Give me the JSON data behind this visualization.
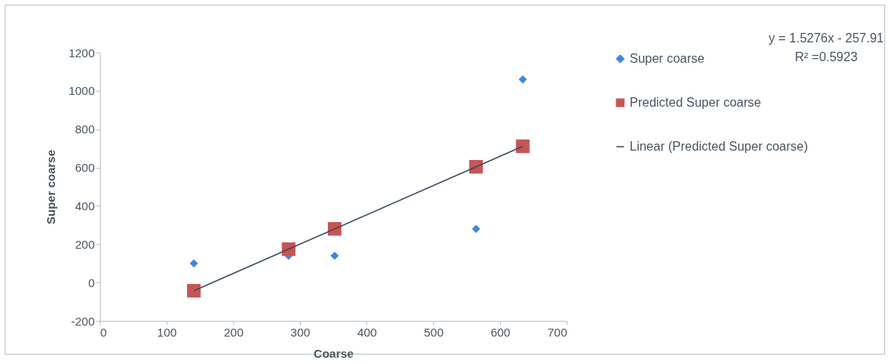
{
  "chart_data": {
    "type": "scatter",
    "xlabel": "Coarse",
    "ylabel": "Super coarse",
    "annotations": [
      "y = 1.5276x - 257.91",
      "R² =0.5923"
    ],
    "xlim": [
      0,
      700
    ],
    "xticks": [
      0,
      100,
      200,
      300,
      400,
      500,
      600,
      700
    ],
    "ylim": [
      -200,
      1200
    ],
    "yticks": [
      -200,
      0,
      200,
      400,
      600,
      800,
      1000,
      1200
    ],
    "grid": false,
    "legend": "right",
    "series": [
      {
        "name": "Super coarse",
        "type": "scatter",
        "marker": "diamond",
        "color": "#3f86e0",
        "x": [
          141,
          283,
          352,
          564,
          634
        ],
        "values": [
          100,
          140,
          140,
          280,
          1060
        ]
      },
      {
        "name": "Predicted Super coarse",
        "type": "scatter",
        "marker": "square",
        "color": "#c65555",
        "x": [
          141,
          283,
          352,
          564,
          634
        ],
        "values": [
          -43,
          174,
          280,
          604,
          711
        ]
      },
      {
        "name": "Linear (Predicted Super coarse)",
        "type": "line",
        "color": "#3a4a5a",
        "x": [
          141,
          634
        ],
        "values": [
          -43,
          711
        ]
      }
    ]
  }
}
